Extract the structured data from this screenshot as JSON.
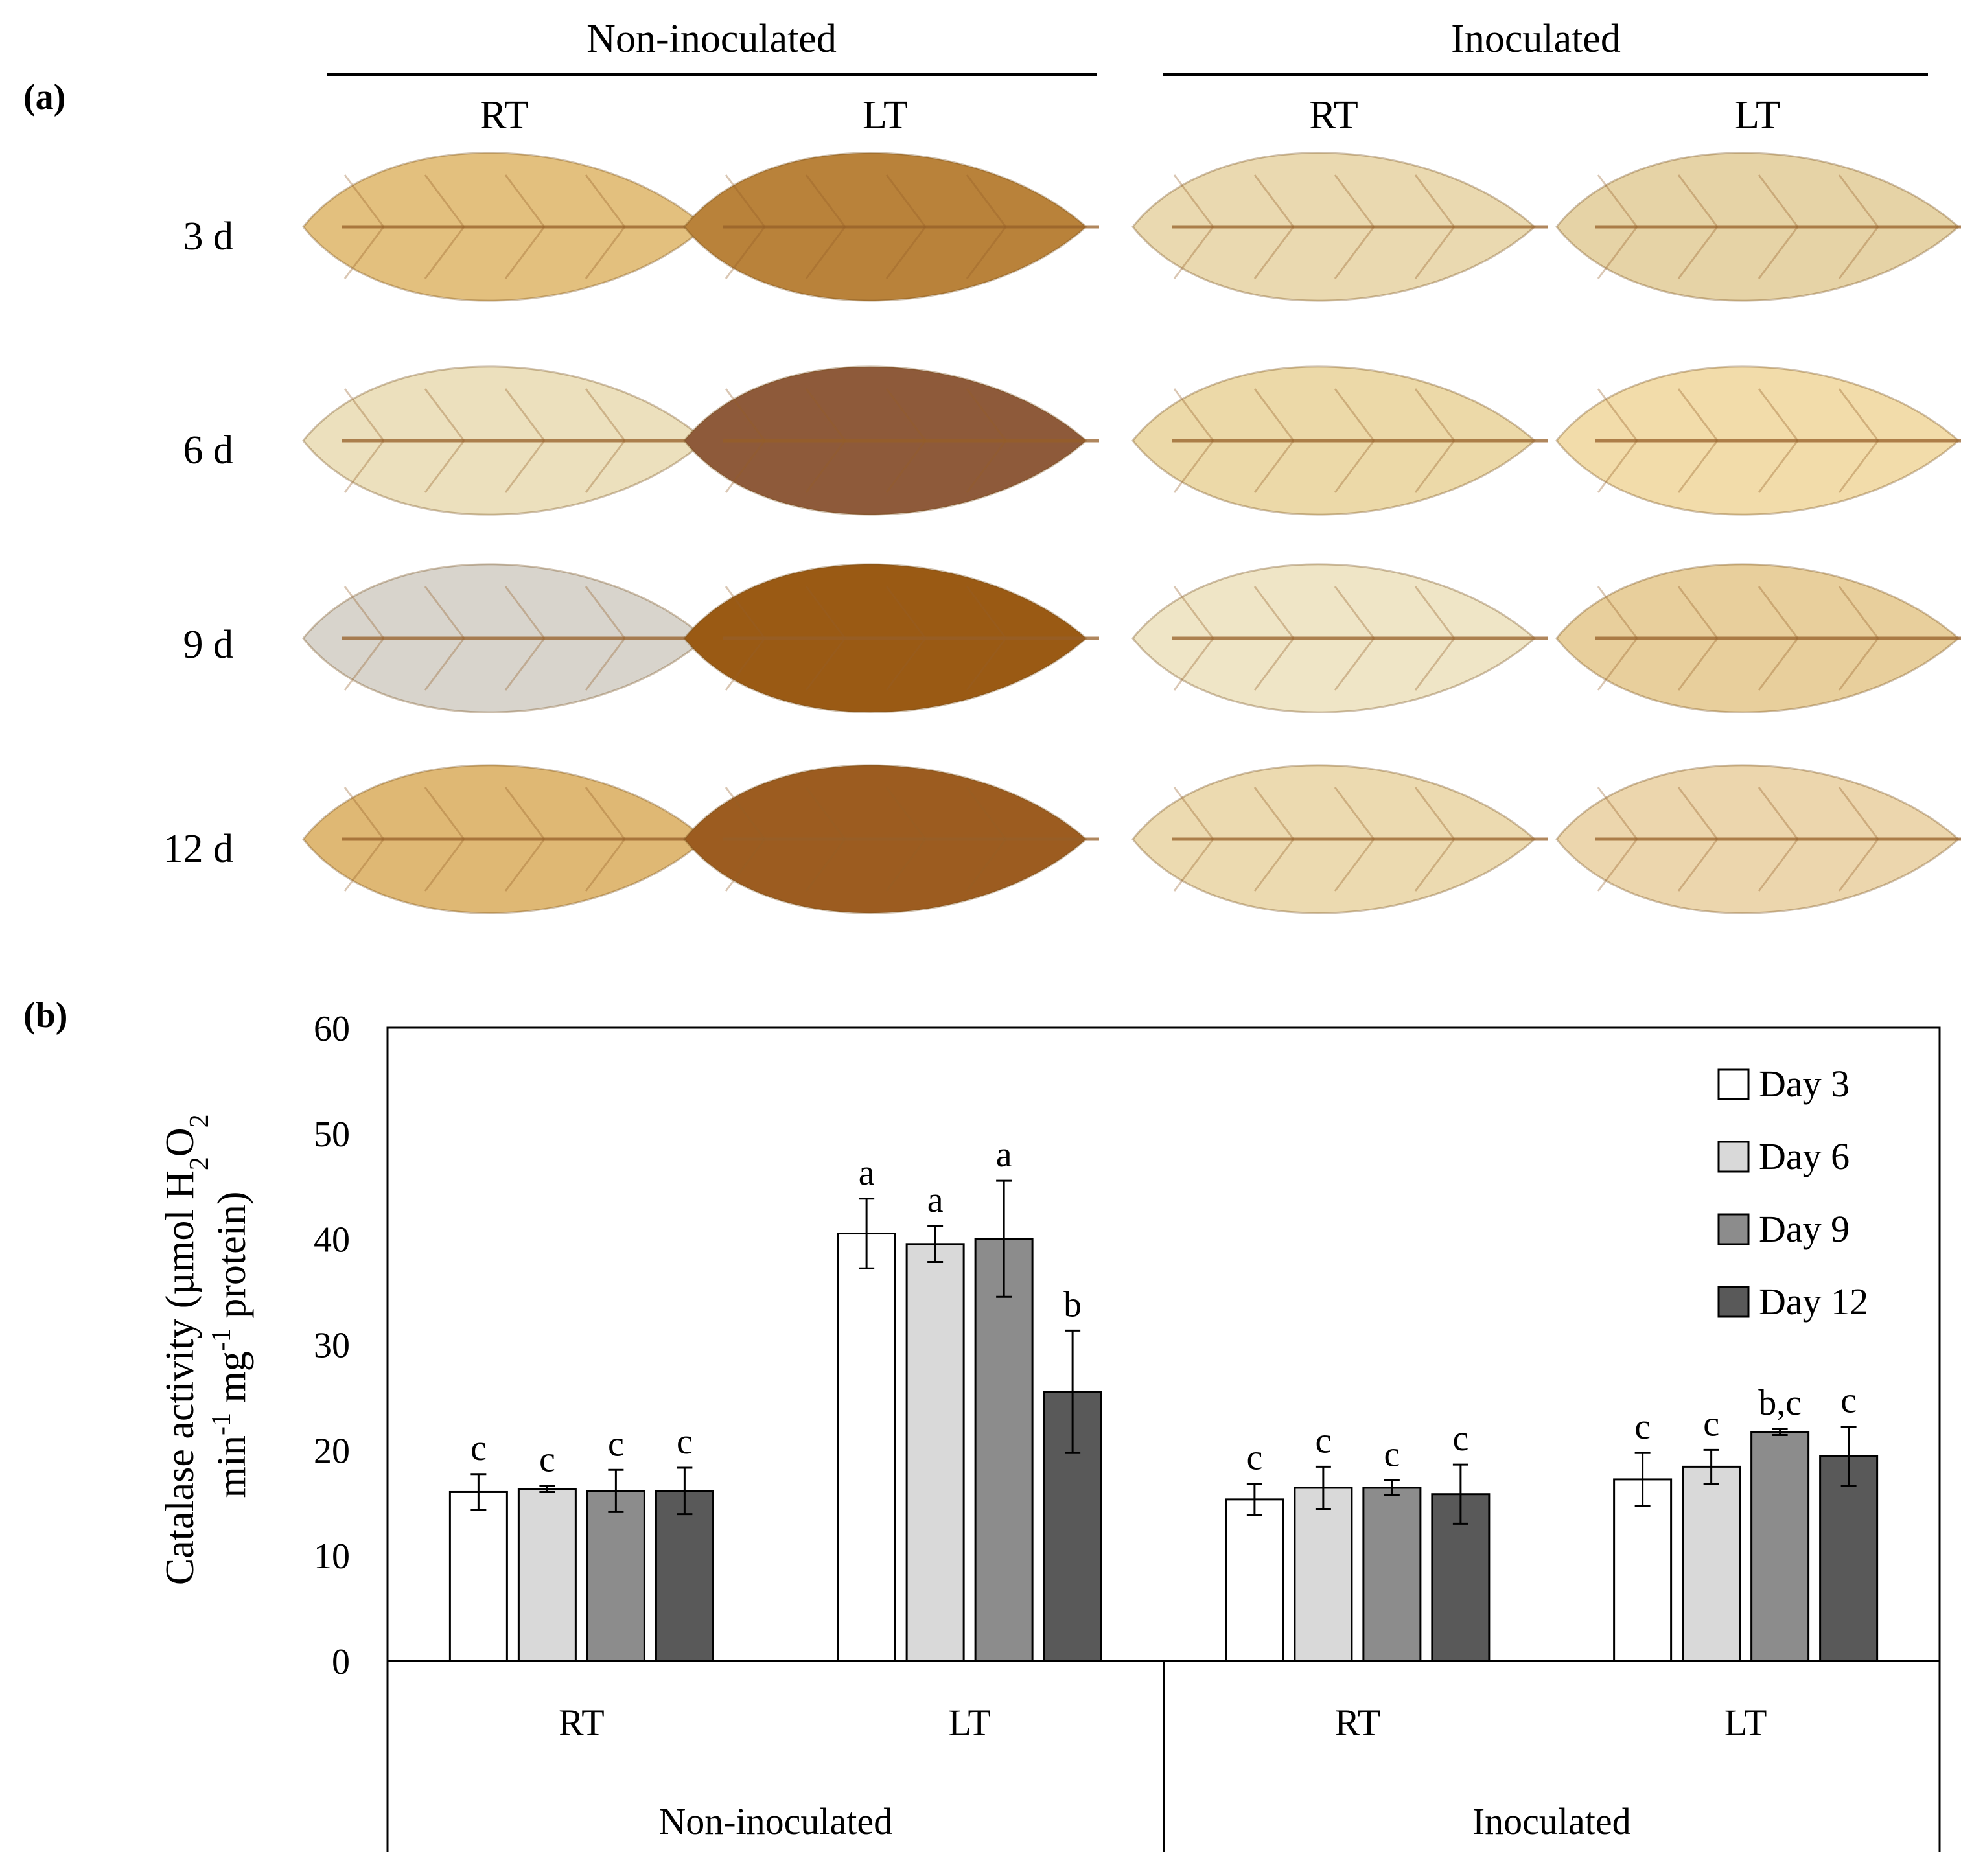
{
  "panel_a": {
    "label": "(a)",
    "groups": [
      "Non-inoculated",
      "Inoculated"
    ],
    "treatments": [
      "RT",
      "LT"
    ],
    "days": [
      "3 d",
      "6 d",
      "9 d",
      "12 d"
    ],
    "leaf_colors": [
      [
        "#e3c07e",
        "#b9823a",
        "#ead9b0",
        "#e6d3a6"
      ],
      [
        "#ece0bd",
        "#8e5a3a",
        "#ecd9a8",
        "#f2dcaa"
      ],
      [
        "#d8d4cc",
        "#9a5a14",
        "#efe5c6",
        "#e8cf9c"
      ],
      [
        "#dfb874",
        "#9c5c20",
        "#ecdab0",
        "#ecd6ad"
      ]
    ]
  },
  "panel_b": {
    "label": "(b)"
  },
  "chart_data": {
    "type": "bar",
    "title": "",
    "ylabel": "Catalase activity (µmol H2O2 min-1 mg-1 protein)",
    "ylabel_line1": "Catalase activity (µmol H",
    "ylabel_sub": "2",
    "ylabel_mid": "O",
    "ylabel_sub2": "2",
    "ylabel_line2a": "min",
    "ylabel_sup1": "-1",
    "ylabel_line2b": " mg",
    "ylabel_sup2": "-1",
    "ylabel_line2c": " protein)",
    "ylim": [
      0,
      60
    ],
    "yticks": [
      0,
      10,
      20,
      30,
      40,
      50,
      60
    ],
    "categories": [
      "RT",
      "LT",
      "RT",
      "LT"
    ],
    "groups": [
      {
        "name": "Non-inoculated",
        "categories": [
          "RT",
          "LT"
        ]
      },
      {
        "name": "Inoculated",
        "categories": [
          "RT",
          "LT"
        ]
      }
    ],
    "series": [
      {
        "name": "Day 3",
        "color": "#ffffff",
        "values": [
          16.0,
          40.5,
          15.3,
          17.2
        ],
        "errors": [
          1.7,
          3.3,
          1.5,
          2.5
        ],
        "letters": [
          "c",
          "a",
          "c",
          "c"
        ]
      },
      {
        "name": "Day 6",
        "color": "#d9d9d9",
        "values": [
          16.3,
          39.5,
          16.4,
          18.4
        ],
        "errors": [
          0.3,
          1.7,
          2.0,
          1.6
        ],
        "letters": [
          "c",
          "a",
          "c",
          "c"
        ]
      },
      {
        "name": "Day 9",
        "color": "#8c8c8c",
        "values": [
          16.1,
          40.0,
          16.4,
          21.7
        ],
        "errors": [
          2.0,
          5.5,
          0.7,
          0.3
        ],
        "letters": [
          "c",
          "a",
          "c",
          "b,c"
        ]
      },
      {
        "name": "Day 12",
        "color": "#595959",
        "values": [
          16.1,
          25.5,
          15.8,
          19.4
        ],
        "errors": [
          2.2,
          5.8,
          2.8,
          2.8
        ],
        "letters": [
          "c",
          "b",
          "c",
          "c"
        ]
      }
    ],
    "legend_position": "top-right"
  }
}
